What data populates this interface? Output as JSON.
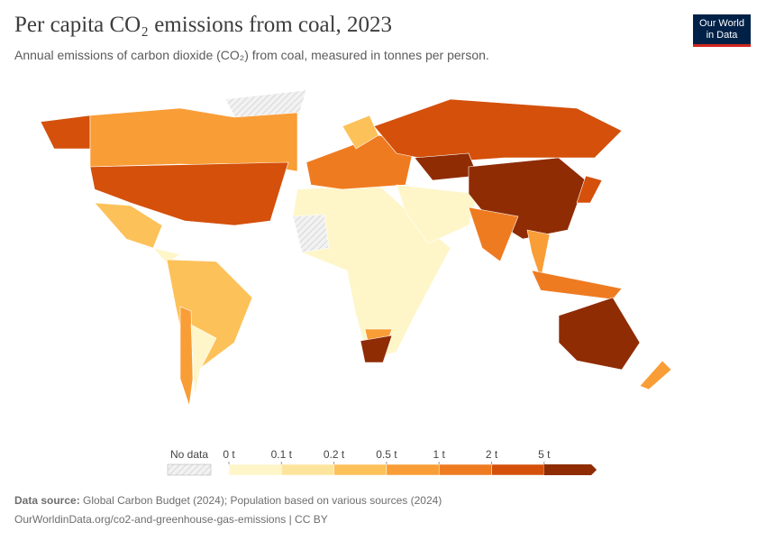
{
  "header": {
    "title": "Per capita CO₂ emissions from coal, 2023",
    "subtitle": "Annual emissions of carbon dioxide (CO₂) from coal, measured in tonnes per person.",
    "logo": [
      "Our World",
      "in Data"
    ]
  },
  "legend": {
    "no_data": "No data",
    "bins": [
      {
        "value": 0,
        "label": "0 t"
      },
      {
        "value": 0.1,
        "label": "0.1 t"
      },
      {
        "value": 0.2,
        "label": "0.2 t"
      },
      {
        "value": 0.5,
        "label": "0.5 t"
      },
      {
        "value": 1,
        "label": "1 t"
      },
      {
        "value": 2,
        "label": "2 t"
      },
      {
        "value": 5,
        "label": "5 t"
      }
    ],
    "colors": [
      "#fef6c9",
      "#fde49c",
      "#fdc159",
      "#f99d36",
      "#ef7b21",
      "#d4500b",
      "#8f2c04"
    ]
  },
  "footer": {
    "source_label": "Data source:",
    "source": "Global Carbon Budget (2024); Population based on various sources (2024)",
    "url": "OurWorldinData.org/co2-and-greenhouse-gas-emissions | CC BY"
  }
}
